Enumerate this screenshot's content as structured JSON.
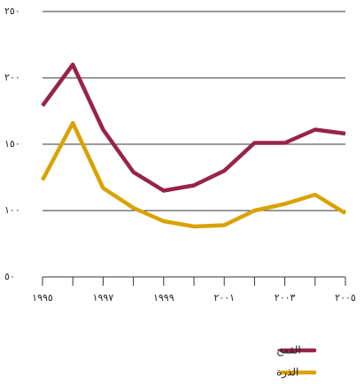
{
  "chart_data": {
    "type": "line",
    "x": [
      1995,
      1996,
      1997,
      1998,
      1999,
      2000,
      2001,
      2002,
      2003,
      2004,
      2005
    ],
    "series": [
      {
        "name": "القمح",
        "color": "#98234a",
        "values": [
          179,
          210,
          161,
          129,
          115,
          119,
          130,
          151,
          151,
          161,
          158
        ]
      },
      {
        "name": "الذرة",
        "color": "#d9a200",
        "values": [
          123,
          166,
          117,
          102,
          92,
          88,
          89,
          100,
          105,
          112,
          98
        ]
      }
    ],
    "xlim": [
      1995,
      2005
    ],
    "xticks": [
      {
        "value": 1995,
        "label": "١٩٩٥"
      },
      {
        "value": 1997,
        "label": "١٩٩٧"
      },
      {
        "value": 1999,
        "label": "١٩٩٩"
      },
      {
        "value": 2001,
        "label": "٢٠٠١"
      },
      {
        "value": 2003,
        "label": "٢٠٠٣"
      },
      {
        "value": 2005,
        "label": "٢٠٠٥"
      }
    ],
    "ylim": [
      50,
      250
    ],
    "yticks": [
      {
        "value": 50,
        "label": "٥٠"
      },
      {
        "value": 100,
        "label": "١٠٠"
      },
      {
        "value": 150,
        "label": "١٥٠"
      },
      {
        "value": 200,
        "label": "٢٠٠"
      },
      {
        "value": 250,
        "label": "٢٥٠"
      }
    ],
    "grid": true,
    "legend": "bottom-right"
  }
}
